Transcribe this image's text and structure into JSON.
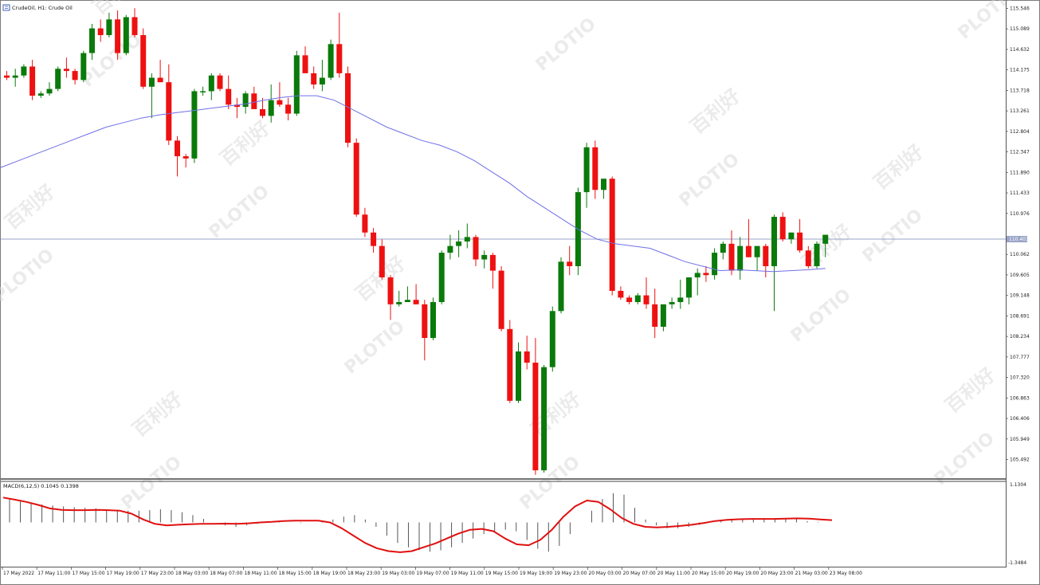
{
  "window": {
    "title": "CrudeOil, H1:  Crude Oil"
  },
  "macd_panel": {
    "label": "MACD(6,12,5) 0.1045 0.1398",
    "top_label": "1.1304",
    "bottom_label": "-1.3484"
  },
  "colors": {
    "bull": "#0a7a0a",
    "bear": "#ee1111",
    "ma_line": "#6f6fe8",
    "signal_line": "#e01010",
    "hist": "#555555",
    "price_line": "#9aa4c8",
    "current_price_bg": "#9aa4c8"
  },
  "watermark": {
    "brand": "PLOTIO",
    "chinese": "百利好"
  },
  "chart_data": {
    "type": "candlestick",
    "symbol": "CrudeOil",
    "timeframe": "H1",
    "y_axis_labels": [
      "115.546",
      "115.089",
      "114.632",
      "114.175",
      "113.718",
      "113.261",
      "112.804",
      "112.347",
      "111.890",
      "111.433",
      "110.976",
      "110.062",
      "109.605",
      "109.148",
      "108.691",
      "108.234",
      "107.777",
      "107.320",
      "106.863",
      "106.406",
      "105.949",
      "105.492"
    ],
    "current_price": "110.403",
    "ylim": [
      105.1,
      115.7
    ],
    "x_labels": [
      "17 May 2022",
      "17 May 11:00",
      "17 May 15:00",
      "17 May 19:00",
      "17 May 23:00",
      "18 May 03:00",
      "18 May 07:00",
      "18 May 11:00",
      "18 May 15:00",
      "18 May 19:00",
      "18 May 23:00",
      "19 May 03:00",
      "19 May 07:00",
      "19 May 11:00",
      "19 May 15:00",
      "19 May 19:00",
      "19 May 23:00",
      "20 May 03:00",
      "20 May 07:00",
      "20 May 11:00",
      "20 May 15:00",
      "20 May 19:00",
      "20 May 23:00",
      "21 May 03:00",
      "23 May 08:00"
    ],
    "candles": [
      [
        114.05,
        114.15,
        113.95,
        114.0
      ],
      [
        114.0,
        114.2,
        113.8,
        114.05
      ],
      [
        114.05,
        114.3,
        114.0,
        114.25
      ],
      [
        114.25,
        114.4,
        113.5,
        113.6
      ],
      [
        113.6,
        113.7,
        113.55,
        113.65
      ],
      [
        113.65,
        113.9,
        113.6,
        113.75
      ],
      [
        113.75,
        114.25,
        113.7,
        114.2
      ],
      [
        114.2,
        114.45,
        114.0,
        114.15
      ],
      [
        114.15,
        114.2,
        113.85,
        113.95
      ],
      [
        113.95,
        114.6,
        113.9,
        114.55
      ],
      [
        114.55,
        115.2,
        114.4,
        115.1
      ],
      [
        115.1,
        115.3,
        114.8,
        114.95
      ],
      [
        114.95,
        115.45,
        114.9,
        115.3
      ],
      [
        115.3,
        115.5,
        114.4,
        114.55
      ],
      [
        114.55,
        115.4,
        114.5,
        115.35
      ],
      [
        115.35,
        115.55,
        114.9,
        114.95
      ],
      [
        114.95,
        115.1,
        113.75,
        113.8
      ],
      [
        113.8,
        114.1,
        113.1,
        114.0
      ],
      [
        114.0,
        114.4,
        113.95,
        113.9
      ],
      [
        113.9,
        114.3,
        112.5,
        112.6
      ],
      [
        112.6,
        112.7,
        111.8,
        112.25
      ],
      [
        112.25,
        112.3,
        112.0,
        112.2
      ],
      [
        112.2,
        113.75,
        112.1,
        113.7
      ],
      [
        113.7,
        113.8,
        113.6,
        113.7
      ],
      [
        113.7,
        114.1,
        113.5,
        114.05
      ],
      [
        114.05,
        114.1,
        113.7,
        113.75
      ],
      [
        113.75,
        114.05,
        113.3,
        113.4
      ],
      [
        113.4,
        113.55,
        113.1,
        113.35
      ],
      [
        113.35,
        113.7,
        113.2,
        113.65
      ],
      [
        113.65,
        113.8,
        113.3,
        113.3
      ],
      [
        113.3,
        113.55,
        113.1,
        113.15
      ],
      [
        113.15,
        113.85,
        113.0,
        113.5
      ],
      [
        113.5,
        113.9,
        113.35,
        113.4
      ],
      [
        113.4,
        113.55,
        113.05,
        113.2
      ],
      [
        113.2,
        114.6,
        113.15,
        114.5
      ],
      [
        114.5,
        114.7,
        114.1,
        114.1
      ],
      [
        114.1,
        114.25,
        113.75,
        113.85
      ],
      [
        113.85,
        114.4,
        113.7,
        114.0
      ],
      [
        114.0,
        114.85,
        113.95,
        114.75
      ],
      [
        114.75,
        115.45,
        114.0,
        114.1
      ],
      [
        114.1,
        114.25,
        112.45,
        112.55
      ],
      [
        112.55,
        112.65,
        110.9,
        110.95
      ],
      [
        110.95,
        111.1,
        110.45,
        110.55
      ],
      [
        110.55,
        110.65,
        110.1,
        110.25
      ],
      [
        110.25,
        110.4,
        109.5,
        109.55
      ],
      [
        109.55,
        109.6,
        108.6,
        108.95
      ],
      [
        108.95,
        109.25,
        108.9,
        109.0
      ],
      [
        109.0,
        109.35,
        109.0,
        109.05
      ],
      [
        109.05,
        109.4,
        108.95,
        108.95
      ],
      [
        108.95,
        109.05,
        107.7,
        108.2
      ],
      [
        108.2,
        109.1,
        108.15,
        109.0
      ],
      [
        109.0,
        110.15,
        108.95,
        110.1
      ],
      [
        110.1,
        110.5,
        109.95,
        110.25
      ],
      [
        110.25,
        110.6,
        110.0,
        110.35
      ],
      [
        110.35,
        110.75,
        110.2,
        110.45
      ],
      [
        110.45,
        110.5,
        109.8,
        109.95
      ],
      [
        109.95,
        110.15,
        109.75,
        110.05
      ],
      [
        110.05,
        110.1,
        109.3,
        109.7
      ],
      [
        109.7,
        109.8,
        108.35,
        108.4
      ],
      [
        108.4,
        108.6,
        106.75,
        106.8
      ],
      [
        106.8,
        108.1,
        106.75,
        107.9
      ],
      [
        107.9,
        108.25,
        107.5,
        107.65
      ],
      [
        107.65,
        108.2,
        105.15,
        105.25
      ],
      [
        105.25,
        107.6,
        105.2,
        107.55
      ],
      [
        107.55,
        108.9,
        107.45,
        108.8
      ],
      [
        108.8,
        110.0,
        108.75,
        109.9
      ],
      [
        109.9,
        110.25,
        109.6,
        109.8
      ],
      [
        109.8,
        111.55,
        109.6,
        111.45
      ],
      [
        111.45,
        112.55,
        111.1,
        112.45
      ],
      [
        112.45,
        112.6,
        111.3,
        111.5
      ],
      [
        111.5,
        111.7,
        111.3,
        111.75
      ],
      [
        111.75,
        111.8,
        109.15,
        109.25
      ],
      [
        109.25,
        109.35,
        109.05,
        109.1
      ],
      [
        109.1,
        109.15,
        108.95,
        109.0
      ],
      [
        109.0,
        109.2,
        108.95,
        109.15
      ],
      [
        109.15,
        109.55,
        108.85,
        108.95
      ],
      [
        108.95,
        109.3,
        108.2,
        108.45
      ],
      [
        108.45,
        108.9,
        108.35,
        108.95
      ],
      [
        108.95,
        109.1,
        108.85,
        109.0
      ],
      [
        109.0,
        109.5,
        108.85,
        109.1
      ],
      [
        109.1,
        109.55,
        108.95,
        109.55
      ],
      [
        109.55,
        109.75,
        109.15,
        109.65
      ],
      [
        109.65,
        109.8,
        109.45,
        109.6
      ],
      [
        109.6,
        110.2,
        109.5,
        110.1
      ],
      [
        110.1,
        110.35,
        109.95,
        110.3
      ],
      [
        110.3,
        110.6,
        109.6,
        109.7
      ],
      [
        109.7,
        110.45,
        109.5,
        110.25
      ],
      [
        110.25,
        110.85,
        110.0,
        110.0
      ],
      [
        110.0,
        110.25,
        109.7,
        110.25
      ],
      [
        110.25,
        110.3,
        109.55,
        109.8
      ],
      [
        109.8,
        110.95,
        108.8,
        110.9
      ],
      [
        110.9,
        111.0,
        110.35,
        110.4
      ],
      [
        110.4,
        110.55,
        110.3,
        110.55
      ],
      [
        110.55,
        110.85,
        110.1,
        110.15
      ],
      [
        110.15,
        110.25,
        109.75,
        109.8
      ],
      [
        109.8,
        110.35,
        109.75,
        110.3
      ],
      [
        110.3,
        110.5,
        110.0,
        110.5
      ]
    ],
    "ma_line": [
      112.0,
      112.15,
      112.3,
      112.45,
      112.6,
      112.75,
      112.9,
      113.0,
      113.1,
      113.17,
      113.22,
      113.27,
      113.32,
      113.37,
      113.42,
      113.5,
      113.56,
      113.6,
      113.6,
      113.5,
      113.3,
      113.1,
      112.9,
      112.75,
      112.6,
      112.5,
      112.35,
      112.15,
      111.9,
      111.65,
      111.35,
      111.1,
      110.85,
      110.6,
      110.4,
      110.3,
      110.25,
      110.2,
      110.05,
      109.9,
      109.8,
      109.7,
      109.72,
      109.7,
      109.68,
      109.7,
      109.72,
      109.75
    ],
    "macd": {
      "ylim": [
        -1.3484,
        1.1304
      ],
      "histogram": [
        0.8,
        0.72,
        0.68,
        0.62,
        0.58,
        0.55,
        0.52,
        0.5,
        0.48,
        0.45,
        0.42,
        0.4,
        0.4,
        0.42,
        0.45,
        0.42,
        0.35,
        0.25,
        0.12,
        0.0,
        -0.1,
        -0.15,
        -0.1,
        -0.05,
        0.0,
        0.02,
        0.0,
        -0.02,
        0.0,
        0.05,
        0.1,
        0.2,
        0.25,
        0.1,
        -0.15,
        -0.45,
        -0.7,
        -0.85,
        -0.95,
        -1.0,
        -0.95,
        -0.85,
        -0.7,
        -0.55,
        -0.4,
        -0.3,
        -0.25,
        -0.3,
        -0.6,
        -0.9,
        -1.0,
        -0.8,
        -0.4,
        0.0,
        0.4,
        0.8,
        1.0,
        0.95,
        0.5,
        0.1,
        -0.1,
        -0.2,
        -0.2,
        -0.15,
        -0.08,
        0.0,
        0.05,
        0.1,
        0.12,
        0.12,
        0.1,
        0.12,
        0.15,
        0.12,
        0.05,
        0.02,
        0.0
      ],
      "signal": [
        0.85,
        0.78,
        0.7,
        0.6,
        0.48,
        0.43,
        0.42,
        0.42,
        0.43,
        0.42,
        0.4,
        0.3,
        0.1,
        -0.05,
        -0.1,
        -0.08,
        -0.06,
        -0.05,
        -0.05,
        -0.04,
        -0.05,
        -0.03,
        0.0,
        0.02,
        0.05,
        0.06,
        0.06,
        0.06,
        0.0,
        -0.2,
        -0.45,
        -0.7,
        -0.88,
        -0.98,
        -1.02,
        -0.98,
        -0.85,
        -0.72,
        -0.55,
        -0.38,
        -0.25,
        -0.22,
        -0.3,
        -0.55,
        -0.75,
        -0.78,
        -0.6,
        -0.25,
        0.2,
        0.55,
        0.75,
        0.7,
        0.45,
        0.15,
        -0.05,
        -0.15,
        -0.17,
        -0.15,
        -0.12,
        -0.08,
        -0.02,
        0.05,
        0.09,
        0.11,
        0.12,
        0.12,
        0.12,
        0.13,
        0.14,
        0.13,
        0.1,
        0.08
      ]
    }
  }
}
